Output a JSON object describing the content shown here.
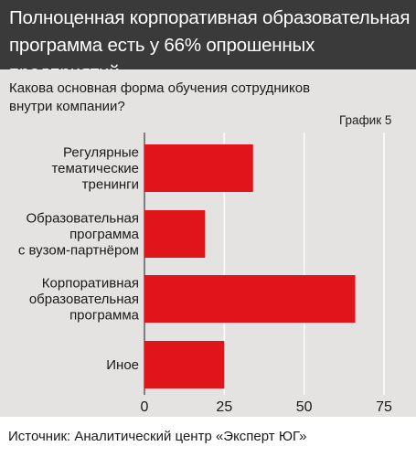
{
  "header": {
    "title": "Полноценная корпоративная образовательная\nпрограмма есть у 66% опрошенных предприятий"
  },
  "subtitle": "Какова основная форма обучения сотрудников\nвнутри компании?",
  "chart_label": "График 5",
  "footer": {
    "source": "Источник: Аналитический центр «Эксперт ЮГ»"
  },
  "colors": {
    "bar": "#e1141b",
    "header_bg": "#3b3a3a",
    "panel_bg": "#e4e3e2",
    "grid": "#ffffff"
  },
  "chart_data": {
    "type": "bar",
    "orientation": "horizontal",
    "title": "Полноценная корпоративная образовательная программа есть у 66% опрошенных предприятий",
    "subtitle": "Какова основная форма обучения сотрудников внутри компании?",
    "categories": [
      "Регулярные\nтематические\nтренинги",
      "Образовательная\nпрограмма\nс вузом-партнёром",
      "Корпоративная\nобразовательная\nпрограмма",
      "Иное"
    ],
    "values": [
      34,
      19,
      66,
      25
    ],
    "xlim": [
      0,
      75
    ],
    "xticks": [
      "0",
      "25",
      "50",
      "75"
    ],
    "grid": true,
    "xlabel": "",
    "ylabel": ""
  }
}
